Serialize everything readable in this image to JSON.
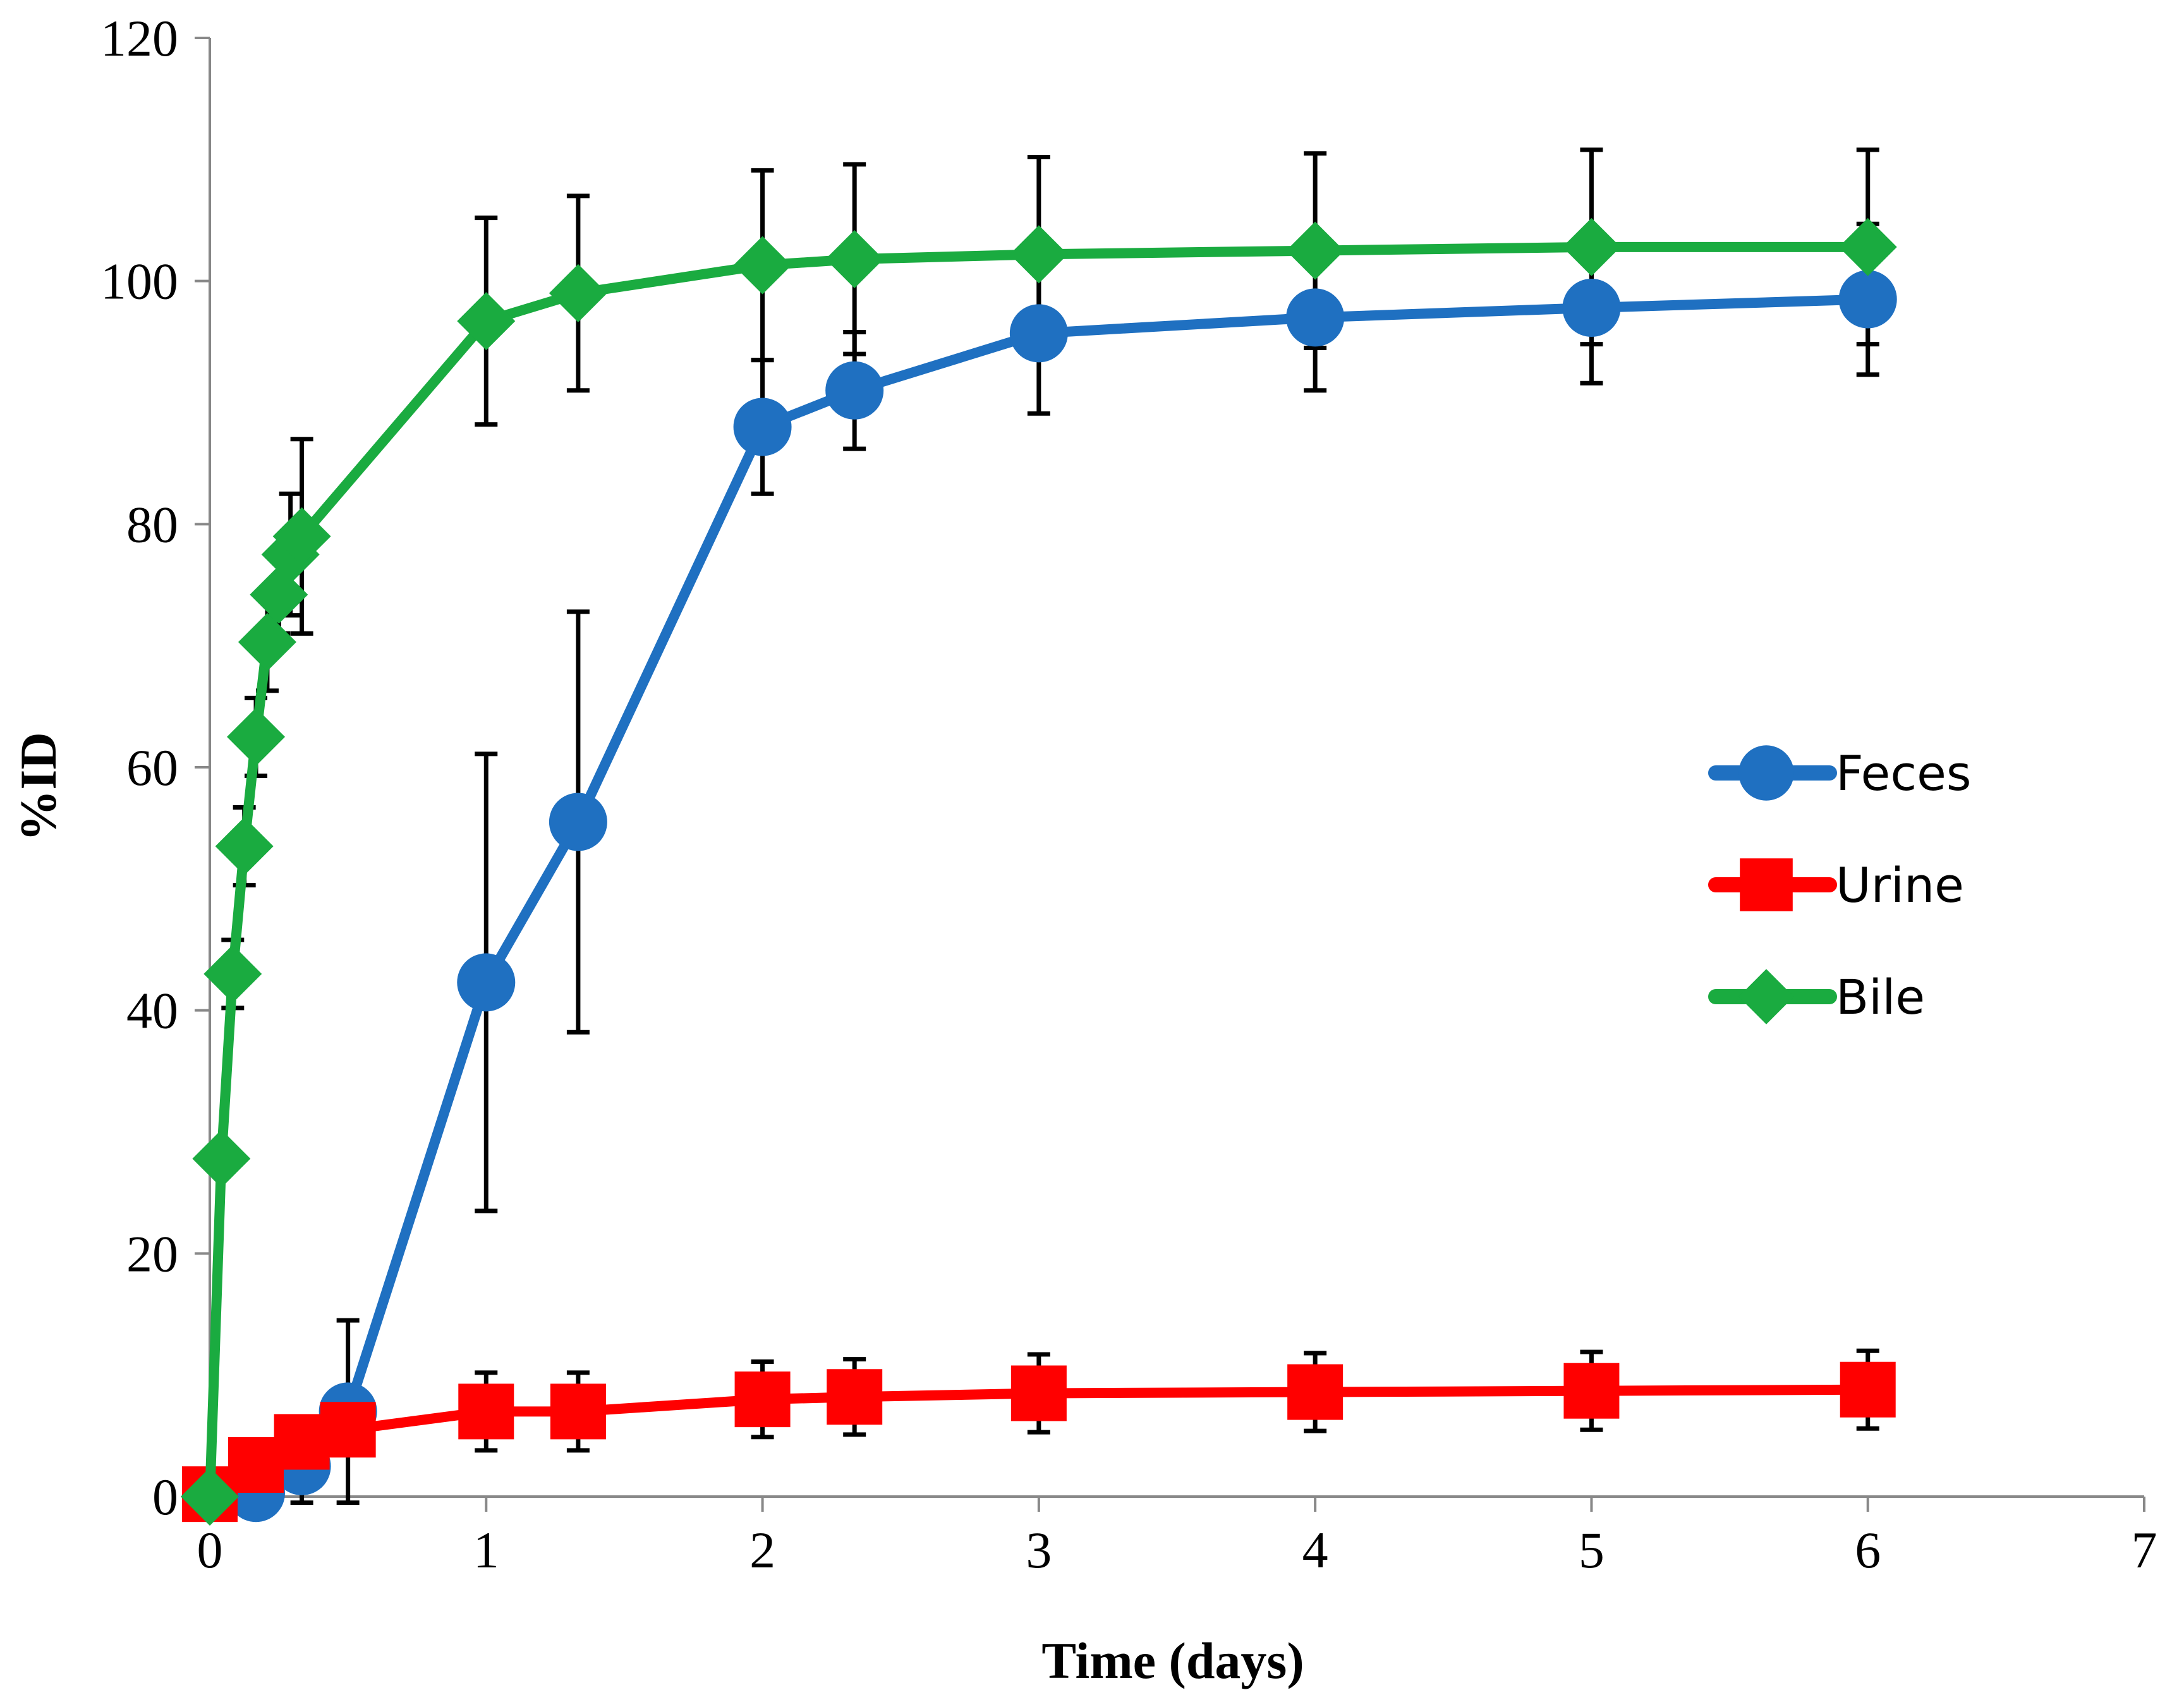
{
  "chart_data": {
    "type": "line",
    "title": "",
    "xlabel": "Time (days)",
    "ylabel": "%ID",
    "xlim": [
      0,
      7
    ],
    "ylim": [
      0,
      120
    ],
    "xticks": [
      0,
      1,
      2,
      3,
      4,
      5,
      6,
      7
    ],
    "yticks": [
      0,
      20,
      40,
      60,
      80,
      100,
      120
    ],
    "grid": false,
    "legend_position": "right",
    "series": [
      {
        "name": "Feces",
        "color": "#1f70c1",
        "marker": "circle",
        "x": [
          0.167,
          0.333,
          0.5,
          1,
          1.333,
          2,
          2.333,
          3,
          4,
          5,
          6
        ],
        "y": [
          0.3,
          2.5,
          7.0,
          42.3,
          55.5,
          88.0,
          91.0,
          95.7,
          97.0,
          97.8,
          98.5
        ],
        "err": [
          0.5,
          3.0,
          7.5,
          18.8,
          17.3,
          5.5,
          4.8,
          6.6,
          6.0,
          6.2,
          6.2
        ]
      },
      {
        "name": "Urine",
        "color": "#ff0000",
        "marker": "square",
        "x": [
          0,
          0.167,
          0.333,
          0.5,
          1,
          1.333,
          2,
          2.333,
          3,
          4,
          5,
          6
        ],
        "y": [
          0.2,
          2.6,
          4.5,
          5.5,
          7.0,
          7.0,
          8.0,
          8.2,
          8.5,
          8.6,
          8.7,
          8.8
        ],
        "err": [
          0,
          1.8,
          2.0,
          2.0,
          3.2,
          3.2,
          3.1,
          3.1,
          3.2,
          3.2,
          3.2,
          3.2
        ]
      },
      {
        "name": "Bile",
        "color": "#1aab40",
        "marker": "diamond",
        "x": [
          0,
          0.042,
          0.083,
          0.125,
          0.167,
          0.208,
          0.25,
          0.292,
          0.333,
          1,
          1.333,
          2,
          2.333,
          3,
          4,
          5,
          6
        ],
        "y": [
          0,
          27.8,
          43.0,
          53.5,
          62.5,
          70.3,
          74.2,
          77.5,
          79.0,
          96.7,
          99.0,
          101.3,
          101.8,
          102.2,
          102.5,
          102.8,
          102.8
        ],
        "err": [
          0,
          0,
          2.8,
          3.2,
          3.2,
          4.0,
          3.2,
          5.0,
          8.0,
          8.5,
          8.0,
          7.8,
          7.8,
          8.0,
          8.0,
          8.0,
          8.0
        ]
      }
    ]
  }
}
